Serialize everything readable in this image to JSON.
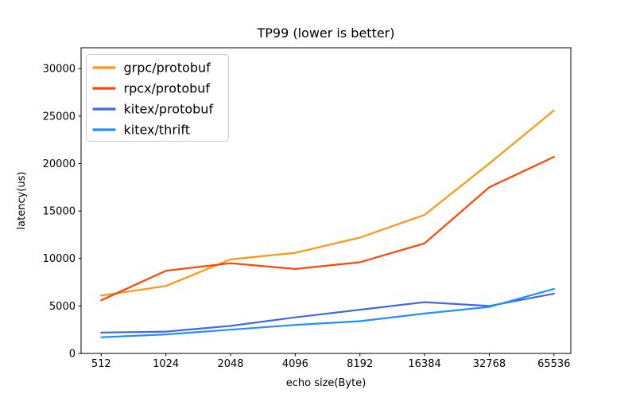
{
  "chart_data": {
    "type": "line",
    "title": "TP99 (lower is better)",
    "xlabel": "echo size(Byte)",
    "ylabel": "latency(us)",
    "categories": [
      "512",
      "1024",
      "2048",
      "4096",
      "8192",
      "16384",
      "32768",
      "65536"
    ],
    "series": [
      {
        "name": "grpc/protobuf",
        "color": "#ff9510",
        "values": [
          6100,
          7100,
          9900,
          10600,
          12200,
          14600,
          20000,
          25600
        ]
      },
      {
        "name": "rpcx/protobuf",
        "color": "#ff4500",
        "values": [
          5600,
          8700,
          9500,
          8900,
          9600,
          11600,
          17500,
          20700
        ]
      },
      {
        "name": "kitex/protobuf",
        "color": "#4169e1",
        "values": [
          2200,
          2300,
          2900,
          3800,
          4600,
          5400,
          5000,
          6300
        ]
      },
      {
        "name": "kitex/thrift",
        "color": "#1e90ff",
        "values": [
          1700,
          2000,
          2500,
          3000,
          3400,
          4200,
          4900,
          6800
        ]
      }
    ],
    "yticks": [
      0,
      5000,
      10000,
      15000,
      20000,
      25000,
      30000
    ],
    "ylim": [
      0,
      32200
    ],
    "grid": false,
    "legend_position": "upper left",
    "axis_color": "#000000",
    "legend_border_color": "#cccccc"
  }
}
